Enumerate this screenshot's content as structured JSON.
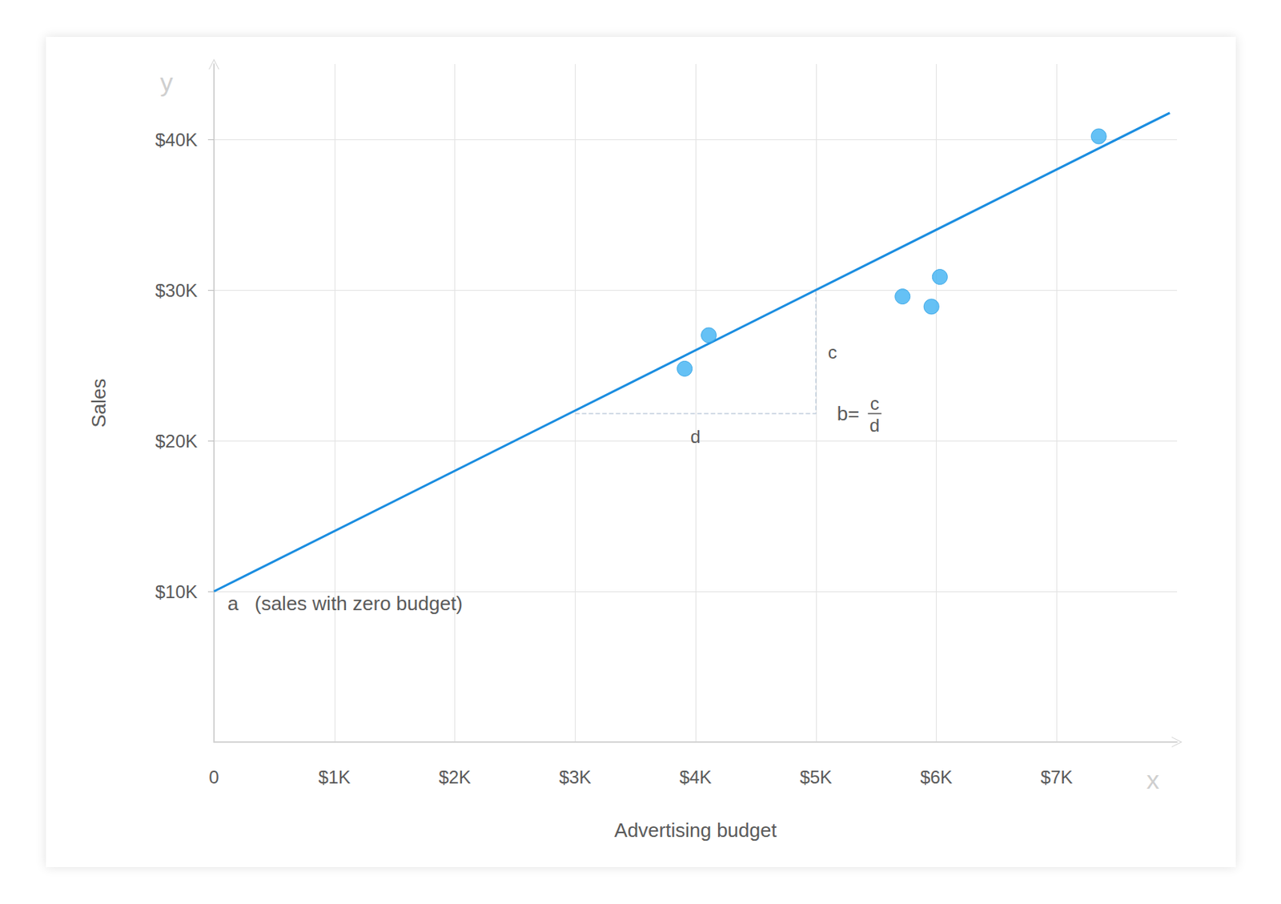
{
  "chart_data": {
    "type": "scatter",
    "x_label": "Advertising budget",
    "y_label": "Sales",
    "x_axis_letter": "x",
    "y_axis_letter": "y",
    "grid": true,
    "xlim": [
      0,
      8000
    ],
    "ylim": [
      0,
      45000
    ],
    "xticks": [
      0,
      {
        "value": 1000,
        "label": "$1K"
      },
      {
        "value": 2000,
        "label": "$2K"
      },
      {
        "value": 3000,
        "label": "$3K"
      },
      {
        "value": 4000,
        "label": "$4K"
      },
      {
        "value": 5000,
        "label": "$5K"
      },
      {
        "value": 6000,
        "label": "$6K"
      },
      {
        "value": 7000,
        "label": "$7K"
      }
    ],
    "yticks": [
      {
        "value": 10000,
        "label": "$10K"
      },
      {
        "value": 20000,
        "label": "$20K"
      },
      {
        "value": 30000,
        "label": "$30K"
      },
      {
        "value": 40000,
        "label": "$40K"
      }
    ],
    "points": {
      "x": [
        3910,
        4110,
        5720,
        5960,
        6030,
        7350
      ],
      "y": [
        24780,
        27000,
        29570,
        28900,
        30870,
        40200
      ],
      "color": "#3eb1f3",
      "marker": "circle"
    },
    "fit_line": {
      "x": [
        0,
        7940
      ],
      "y": [
        10000,
        41760
      ],
      "color": "#1a8de0",
      "line_style": "solid"
    },
    "slope_triangle": {
      "x": [
        3000,
        5000,
        5000
      ],
      "y": [
        21800,
        21800,
        30000
      ],
      "color": "#c4d0de",
      "line_style": "dashed"
    },
    "intercept_label": "a",
    "intercept_note": "(sales with zero budget)",
    "rise_label": "c",
    "run_label": "d",
    "slope_label": "b=",
    "slope_numerator": "c",
    "slope_denominator": "d"
  }
}
